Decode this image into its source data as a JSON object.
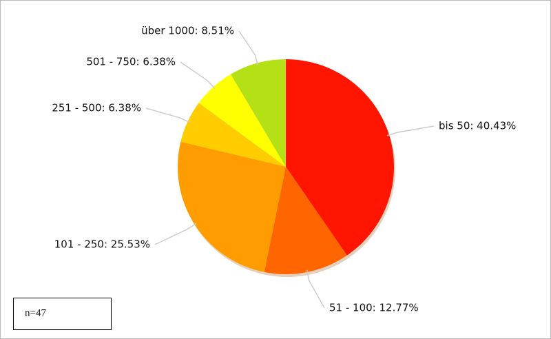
{
  "chart_data": {
    "type": "pie",
    "values": [
      40.43,
      12.77,
      25.53,
      6.38,
      6.38,
      8.51
    ],
    "value_labels": [
      "bis 50: 40.43%",
      "51 - 100: 12.77%",
      "101 - 250: 25.53%",
      "251 - 500: 6.38%",
      "501 - 750: 6.38%",
      "über 1000: 8.51%"
    ],
    "colors": [
      "#ff1500",
      "#ff6600",
      "#ff9c00",
      "#ffcc00",
      "#ffff00",
      "#b4e016"
    ],
    "annotation": "n=47"
  }
}
